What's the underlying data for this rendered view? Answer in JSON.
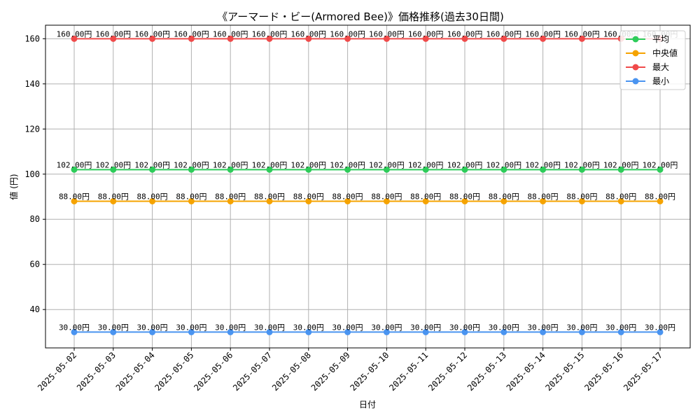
{
  "chart_data": {
    "type": "line",
    "title": "《アーマード・ビー(Armored Bee)》価格推移(過去30日間)",
    "xlabel": "日付",
    "ylabel": "値 (円)",
    "categories": [
      "2025-05-02",
      "2025-05-03",
      "2025-05-04",
      "2025-05-05",
      "2025-05-06",
      "2025-05-07",
      "2025-05-08",
      "2025-05-09",
      "2025-05-10",
      "2025-05-11",
      "2025-05-12",
      "2025-05-13",
      "2025-05-14",
      "2025-05-15",
      "2025-05-16",
      "2025-05-17"
    ],
    "ylim": [
      23,
      166
    ],
    "yticks": [
      40,
      60,
      80,
      100,
      120,
      140,
      160
    ],
    "grid": true,
    "legend_position": "top-right",
    "series": [
      {
        "name": "平均",
        "color": "#2ecc5a",
        "label_suffix": "円",
        "values": [
          102,
          102,
          102,
          102,
          102,
          102,
          102,
          102,
          102,
          102,
          102,
          102,
          102,
          102,
          102,
          102
        ]
      },
      {
        "name": "中央値",
        "color": "#f5a300",
        "label_suffix": "円",
        "values": [
          88,
          88,
          88,
          88,
          88,
          88,
          88,
          88,
          88,
          88,
          88,
          88,
          88,
          88,
          88,
          88
        ]
      },
      {
        "name": "最大",
        "color": "#f04a4a",
        "label_suffix": "円",
        "values": [
          160,
          160,
          160,
          160,
          160,
          160,
          160,
          160,
          160,
          160,
          160,
          160,
          160,
          160,
          160,
          160
        ]
      },
      {
        "name": "最小",
        "color": "#4a94f0",
        "label_suffix": "円",
        "values": [
          30,
          30,
          30,
          30,
          30,
          30,
          30,
          30,
          30,
          30,
          30,
          30,
          30,
          30,
          30,
          30
        ]
      }
    ]
  }
}
